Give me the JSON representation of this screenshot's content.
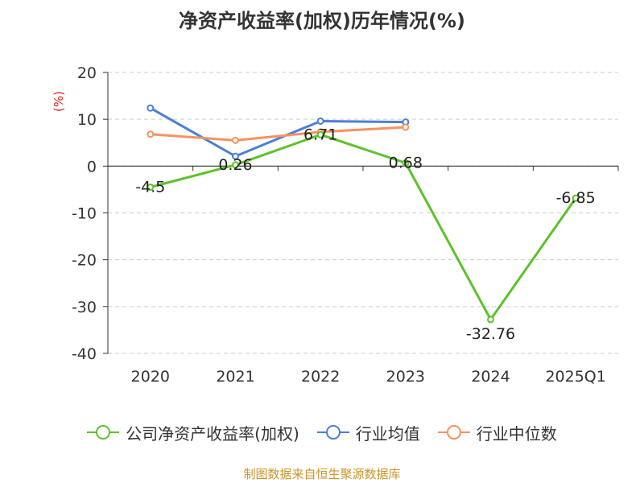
{
  "title": "净资产收益率(加权)历年情况(%)",
  "source": "制图数据来自恒生聚源数据库",
  "chart_data": {
    "type": "line",
    "title": "净资产收益率(加权)历年情况(%)",
    "ylabel": "(%)",
    "xlabel": "",
    "ylim": [
      -40,
      20
    ],
    "yticks": [
      20,
      10,
      0,
      -10,
      -20,
      -30,
      -40
    ],
    "ytick_labels": [
      "20",
      "10",
      "0",
      "-10",
      "-20",
      "-30",
      "-40"
    ],
    "categories": [
      "2020",
      "2021",
      "2022",
      "2023",
      "2024",
      "2025Q1"
    ],
    "grid": true,
    "legend_position": "bottom",
    "series": [
      {
        "name": "公司净资产收益率(加权)",
        "color": "#5cc22a",
        "values": [
          -4.5,
          0.26,
          6.71,
          0.68,
          -32.76,
          -6.85
        ],
        "labels": [
          "-4.5",
          "0.26",
          "6.71",
          "0.68",
          "-32.76",
          "-6.85"
        ]
      },
      {
        "name": "行业均值",
        "color": "#4a7fd9",
        "values": [
          12.4,
          2.1,
          9.6,
          9.4,
          null,
          null
        ]
      },
      {
        "name": "行业中位数",
        "color": "#f79260",
        "values": [
          6.8,
          5.5,
          7.3,
          8.3,
          null,
          null
        ]
      }
    ]
  }
}
